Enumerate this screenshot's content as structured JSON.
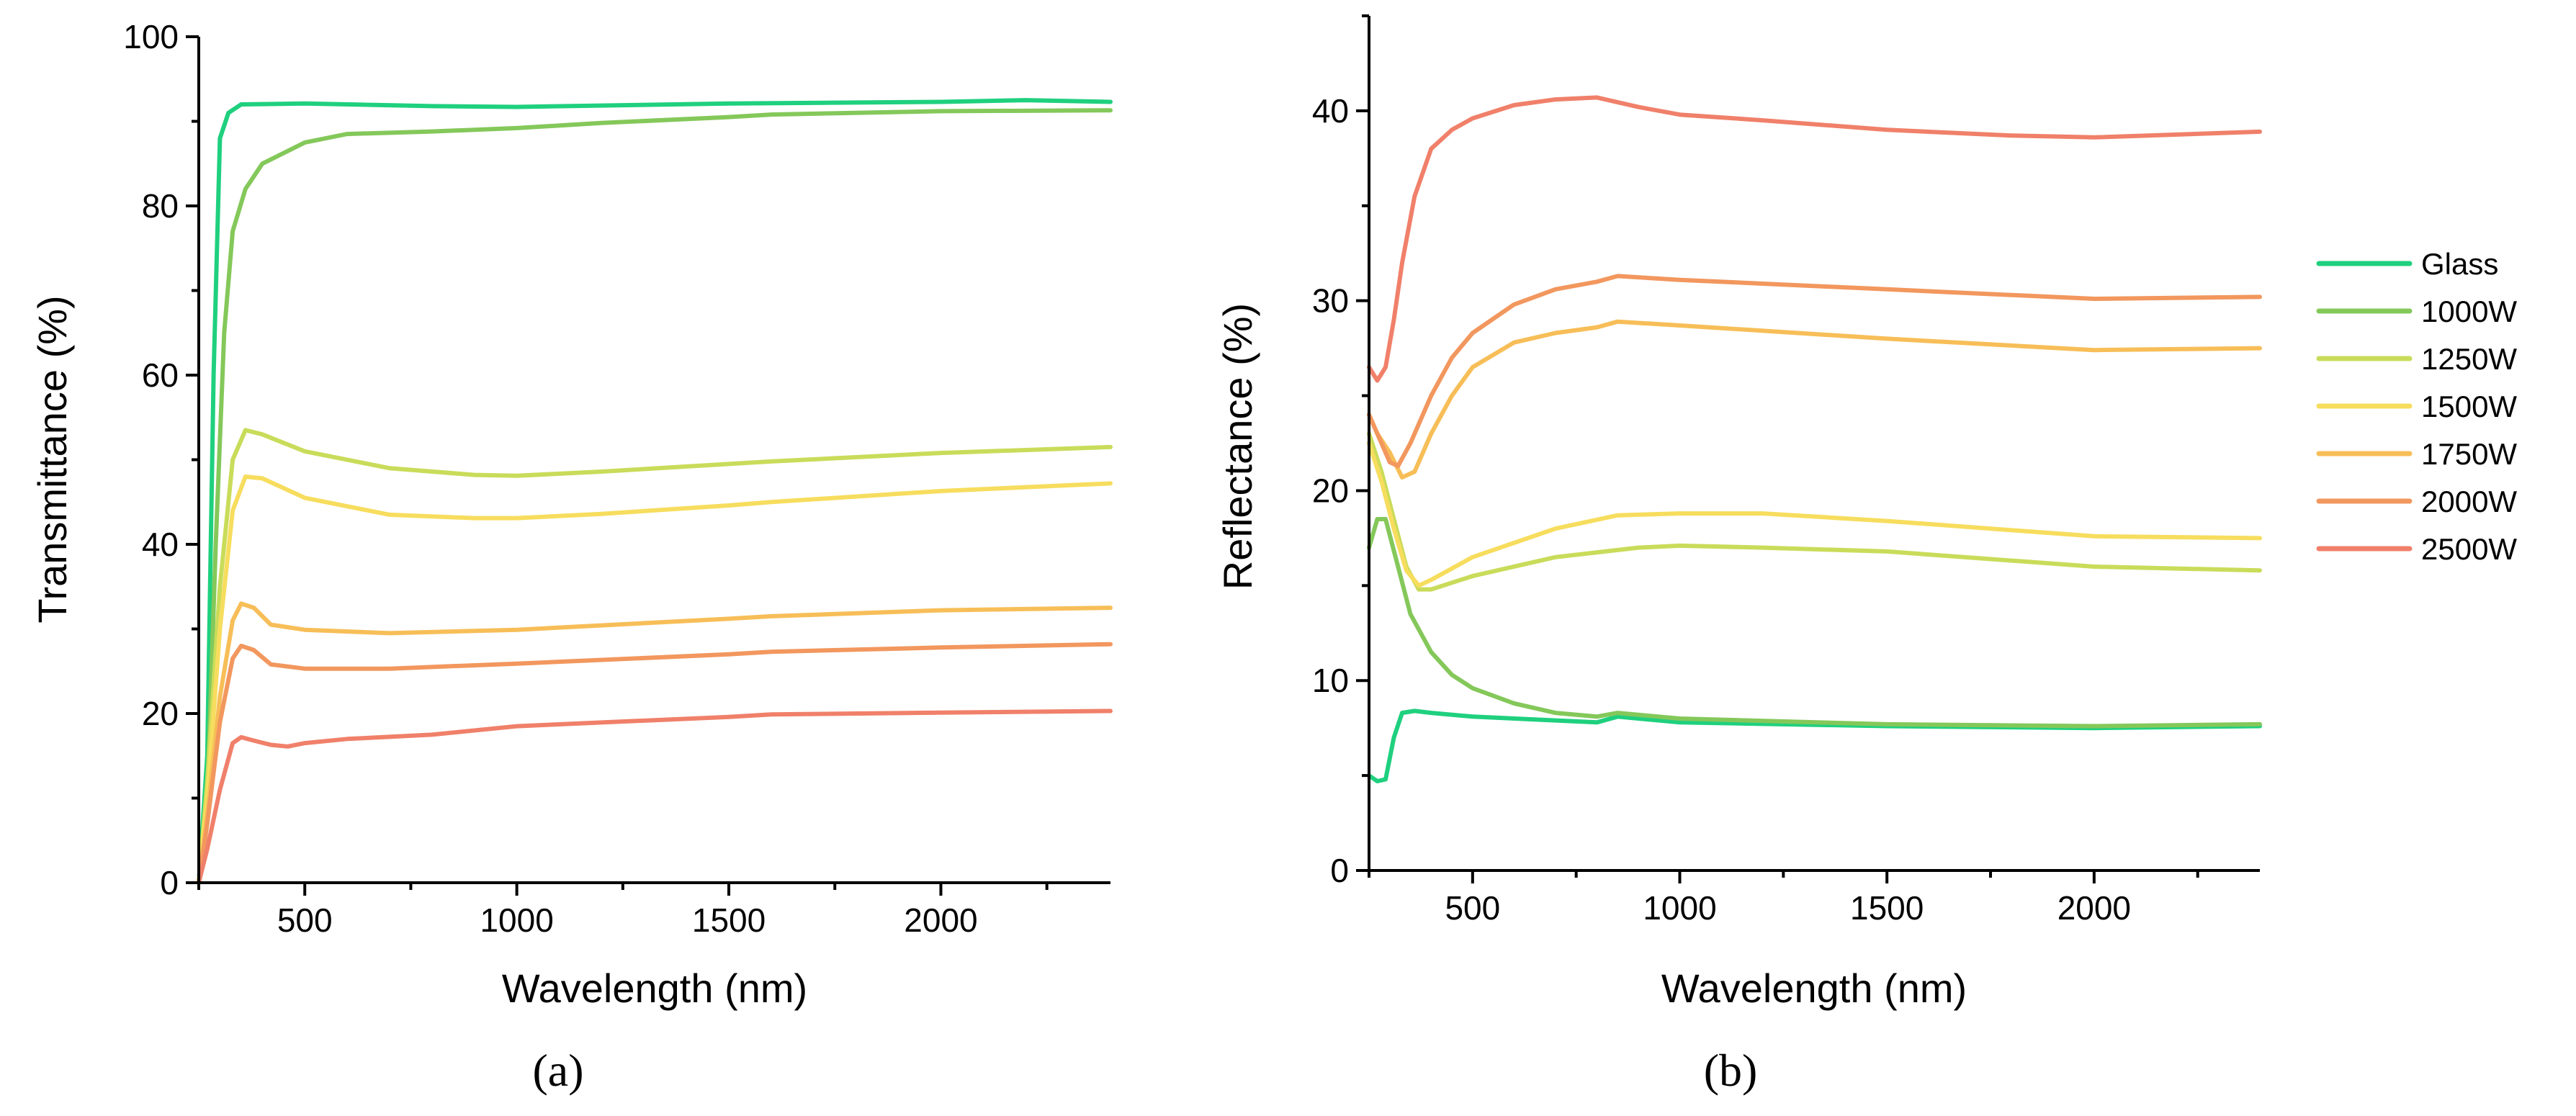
{
  "series_styles": [
    {
      "name": "Glass",
      "color": "#1fd07e"
    },
    {
      "name": "1000W",
      "color": "#84c85a"
    },
    {
      "name": "1250W",
      "color": "#c9dc5a"
    },
    {
      "name": "1500W",
      "color": "#f7dd5e"
    },
    {
      "name": "1750W",
      "color": "#f7be58"
    },
    {
      "name": "2000W",
      "color": "#f2975e"
    },
    {
      "name": "2500W",
      "color": "#f0806a"
    }
  ],
  "chart_data": [
    {
      "type": "line",
      "panel_label": "(a)",
      "title": "",
      "xlabel": "Wavelength (nm)",
      "ylabel": "Transmittance (%)",
      "xlim": [
        250,
        2400
      ],
      "ylim": [
        0,
        100
      ],
      "xticks": [
        500,
        1000,
        1500,
        2000
      ],
      "yticks": [
        0,
        20,
        40,
        60,
        80,
        100
      ],
      "grid": false,
      "series": [
        {
          "name": "Glass",
          "points": [
            [
              250,
              0
            ],
            [
              270,
              15
            ],
            [
              285,
              60
            ],
            [
              300,
              88
            ],
            [
              320,
              91
            ],
            [
              350,
              92
            ],
            [
              500,
              92.1
            ],
            [
              800,
              91.8
            ],
            [
              1000,
              91.7
            ],
            [
              1500,
              92.1
            ],
            [
              2000,
              92.3
            ],
            [
              2200,
              92.5
            ],
            [
              2400,
              92.3
            ]
          ]
        },
        {
          "name": "1000W",
          "points": [
            [
              250,
              0
            ],
            [
              270,
              10
            ],
            [
              290,
              40
            ],
            [
              310,
              65
            ],
            [
              330,
              77
            ],
            [
              360,
              82
            ],
            [
              400,
              85
            ],
            [
              500,
              87.5
            ],
            [
              600,
              88.5
            ],
            [
              800,
              88.8
            ],
            [
              1000,
              89.2
            ],
            [
              1200,
              89.8
            ],
            [
              1500,
              90.5
            ],
            [
              1600,
              90.8
            ],
            [
              2000,
              91.2
            ],
            [
              2400,
              91.3
            ]
          ]
        },
        {
          "name": "1250W",
          "points": [
            [
              250,
              0
            ],
            [
              270,
              12
            ],
            [
              300,
              35
            ],
            [
              330,
              50
            ],
            [
              360,
              53.5
            ],
            [
              400,
              53
            ],
            [
              500,
              51
            ],
            [
              700,
              49
            ],
            [
              900,
              48.2
            ],
            [
              1000,
              48.1
            ],
            [
              1200,
              48.6
            ],
            [
              1500,
              49.5
            ],
            [
              1600,
              49.8
            ],
            [
              2000,
              50.8
            ],
            [
              2400,
              51.5
            ]
          ]
        },
        {
          "name": "1500W",
          "points": [
            [
              250,
              0
            ],
            [
              270,
              10
            ],
            [
              300,
              30
            ],
            [
              330,
              44
            ],
            [
              360,
              48
            ],
            [
              400,
              47.8
            ],
            [
              500,
              45.5
            ],
            [
              700,
              43.5
            ],
            [
              900,
              43.1
            ],
            [
              1000,
              43.1
            ],
            [
              1200,
              43.6
            ],
            [
              1500,
              44.6
            ],
            [
              1600,
              45
            ],
            [
              2000,
              46.3
            ],
            [
              2400,
              47.2
            ]
          ]
        },
        {
          "name": "1750W",
          "points": [
            [
              250,
              0
            ],
            [
              270,
              8
            ],
            [
              300,
              22
            ],
            [
              330,
              31
            ],
            [
              350,
              33
            ],
            [
              380,
              32.5
            ],
            [
              420,
              30.5
            ],
            [
              500,
              29.9
            ],
            [
              700,
              29.5
            ],
            [
              1000,
              29.9
            ],
            [
              1500,
              31.2
            ],
            [
              1600,
              31.5
            ],
            [
              2000,
              32.2
            ],
            [
              2400,
              32.5
            ]
          ]
        },
        {
          "name": "2000W",
          "points": [
            [
              250,
              0
            ],
            [
              270,
              7
            ],
            [
              300,
              19
            ],
            [
              330,
              26.5
            ],
            [
              350,
              28
            ],
            [
              380,
              27.5
            ],
            [
              420,
              25.8
            ],
            [
              500,
              25.3
            ],
            [
              700,
              25.3
            ],
            [
              1000,
              25.9
            ],
            [
              1500,
              27
            ],
            [
              1600,
              27.3
            ],
            [
              2000,
              27.8
            ],
            [
              2400,
              28.2
            ]
          ]
        },
        {
          "name": "2500W",
          "points": [
            [
              250,
              0
            ],
            [
              270,
              4
            ],
            [
              300,
              11
            ],
            [
              330,
              16.5
            ],
            [
              350,
              17.2
            ],
            [
              380,
              16.8
            ],
            [
              420,
              16.3
            ],
            [
              460,
              16.1
            ],
            [
              500,
              16.5
            ],
            [
              600,
              17
            ],
            [
              800,
              17.5
            ],
            [
              1000,
              18.5
            ],
            [
              1500,
              19.6
            ],
            [
              1600,
              19.9
            ],
            [
              2000,
              20.1
            ],
            [
              2400,
              20.3
            ]
          ]
        }
      ]
    },
    {
      "type": "line",
      "panel_label": "(b)",
      "title": "",
      "xlabel": "Wavelength (nm)",
      "ylabel": "Reflectance (%)",
      "xlim": [
        250,
        2400
      ],
      "ylim": [
        0,
        45
      ],
      "xticks": [
        500,
        1000,
        1500,
        2000
      ],
      "yticks": [
        0,
        10,
        20,
        30,
        40
      ],
      "grid": false,
      "legend": {
        "location": "right",
        "entries": [
          "Glass",
          "1000W",
          "1250W",
          "1500W",
          "1750W",
          "2000W",
          "2500W"
        ]
      },
      "series": [
        {
          "name": "Glass",
          "points": [
            [
              250,
              5
            ],
            [
              270,
              4.7
            ],
            [
              290,
              4.8
            ],
            [
              310,
              7
            ],
            [
              330,
              8.3
            ],
            [
              360,
              8.4
            ],
            [
              400,
              8.3
            ],
            [
              500,
              8.1
            ],
            [
              700,
              7.9
            ],
            [
              800,
              7.8
            ],
            [
              850,
              8.1
            ],
            [
              1000,
              7.8
            ],
            [
              1500,
              7.6
            ],
            [
              2000,
              7.5
            ],
            [
              2400,
              7.6
            ]
          ]
        },
        {
          "name": "1000W",
          "points": [
            [
              250,
              17
            ],
            [
              270,
              18.5
            ],
            [
              290,
              18.5
            ],
            [
              320,
              16
            ],
            [
              350,
              13.5
            ],
            [
              400,
              11.5
            ],
            [
              450,
              10.3
            ],
            [
              500,
              9.6
            ],
            [
              600,
              8.8
            ],
            [
              700,
              8.3
            ],
            [
              800,
              8.1
            ],
            [
              850,
              8.3
            ],
            [
              1000,
              8
            ],
            [
              1500,
              7.7
            ],
            [
              2000,
              7.6
            ],
            [
              2400,
              7.7
            ]
          ]
        },
        {
          "name": "1250W",
          "points": [
            [
              250,
              23
            ],
            [
              280,
              21
            ],
            [
              310,
              18.5
            ],
            [
              340,
              16
            ],
            [
              370,
              14.8
            ],
            [
              400,
              14.8
            ],
            [
              500,
              15.5
            ],
            [
              700,
              16.5
            ],
            [
              900,
              17
            ],
            [
              1000,
              17.1
            ],
            [
              1200,
              17
            ],
            [
              1500,
              16.8
            ],
            [
              2000,
              16
            ],
            [
              2400,
              15.8
            ]
          ]
        },
        {
          "name": "1500W",
          "points": [
            [
              250,
              22.5
            ],
            [
              280,
              20.5
            ],
            [
              310,
              18
            ],
            [
              340,
              15.8
            ],
            [
              370,
              15
            ],
            [
              400,
              15.3
            ],
            [
              500,
              16.5
            ],
            [
              700,
              18
            ],
            [
              850,
              18.7
            ],
            [
              1000,
              18.8
            ],
            [
              1200,
              18.8
            ],
            [
              1500,
              18.4
            ],
            [
              2000,
              17.6
            ],
            [
              2400,
              17.5
            ]
          ]
        },
        {
          "name": "1750W",
          "points": [
            [
              250,
              24
            ],
            [
              270,
              23
            ],
            [
              300,
              22
            ],
            [
              330,
              20.7
            ],
            [
              360,
              21
            ],
            [
              400,
              23
            ],
            [
              450,
              25
            ],
            [
              500,
              26.5
            ],
            [
              600,
              27.8
            ],
            [
              700,
              28.3
            ],
            [
              800,
              28.6
            ],
            [
              850,
              28.9
            ],
            [
              1000,
              28.7
            ],
            [
              1500,
              28
            ],
            [
              2000,
              27.4
            ],
            [
              2400,
              27.5
            ]
          ]
        },
        {
          "name": "2000W",
          "points": [
            [
              250,
              24
            ],
            [
              270,
              23
            ],
            [
              300,
              21.5
            ],
            [
              320,
              21.3
            ],
            [
              350,
              22.5
            ],
            [
              400,
              25
            ],
            [
              450,
              27
            ],
            [
              500,
              28.3
            ],
            [
              600,
              29.8
            ],
            [
              700,
              30.6
            ],
            [
              800,
              31
            ],
            [
              850,
              31.3
            ],
            [
              1000,
              31.1
            ],
            [
              1500,
              30.6
            ],
            [
              2000,
              30.1
            ],
            [
              2400,
              30.2
            ]
          ]
        },
        {
          "name": "2500W",
          "points": [
            [
              250,
              26.5
            ],
            [
              270,
              25.8
            ],
            [
              290,
              26.5
            ],
            [
              310,
              29
            ],
            [
              330,
              32
            ],
            [
              360,
              35.5
            ],
            [
              400,
              38
            ],
            [
              450,
              39
            ],
            [
              500,
              39.6
            ],
            [
              600,
              40.3
            ],
            [
              700,
              40.6
            ],
            [
              800,
              40.7
            ],
            [
              900,
              40.2
            ],
            [
              1000,
              39.8
            ],
            [
              1200,
              39.5
            ],
            [
              1500,
              39
            ],
            [
              1800,
              38.7
            ],
            [
              2000,
              38.6
            ],
            [
              2400,
              38.9
            ]
          ]
        }
      ]
    }
  ]
}
